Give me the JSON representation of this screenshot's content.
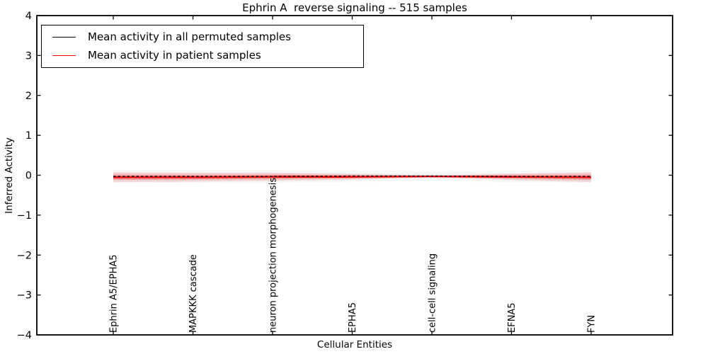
{
  "title": "Ephrin A  reverse signaling -- 515 samples",
  "chart_data": {
    "type": "line",
    "title": "Ephrin A  reverse signaling -- 515 samples",
    "xlabel": "Cellular Entities",
    "ylabel": "Inferred Activity",
    "ylim": [
      -4,
      4
    ],
    "yticks": [
      4,
      3,
      2,
      1,
      0,
      -1,
      -2,
      -3,
      -4
    ],
    "grid": false,
    "legend_position": "upper left",
    "categories": [
      "Ephrin A5/EPHA5",
      "MAPKKK cascade",
      "neuron projection morphogenesis",
      "EPHA5",
      "cell-cell signaling",
      "EFNA5",
      "FYN"
    ],
    "series": [
      {
        "name": "Mean activity in all permuted samples",
        "color": "#000000",
        "style": "dashed",
        "values": [
          -0.03,
          -0.03,
          -0.03,
          -0.02,
          -0.02,
          -0.03,
          -0.03
        ],
        "band_inner": [
          0.08,
          0.08,
          0.08,
          0.07,
          0.055,
          0.07,
          0.08
        ],
        "band_outer": [
          0.16,
          0.16,
          0.16,
          0.14,
          0.11,
          0.14,
          0.16
        ],
        "band_color": "#999999",
        "band_opacity_inner": 0.1,
        "band_opacity_outer": 0.08
      },
      {
        "name": "Mean activity in patient samples",
        "color": "#ff0000",
        "style": "solid",
        "values": [
          -0.05,
          -0.05,
          -0.04,
          -0.04,
          -0.03,
          -0.04,
          -0.05
        ],
        "band_inner": [
          0.06,
          0.055,
          0.05,
          0.035,
          0.008,
          0.04,
          0.06
        ],
        "band_outer": [
          0.12,
          0.11,
          0.1,
          0.07,
          0.016,
          0.08,
          0.12
        ],
        "band_color": "#ff0000",
        "band_opacity_inner": 0.28,
        "band_opacity_outer": 0.14
      }
    ]
  }
}
